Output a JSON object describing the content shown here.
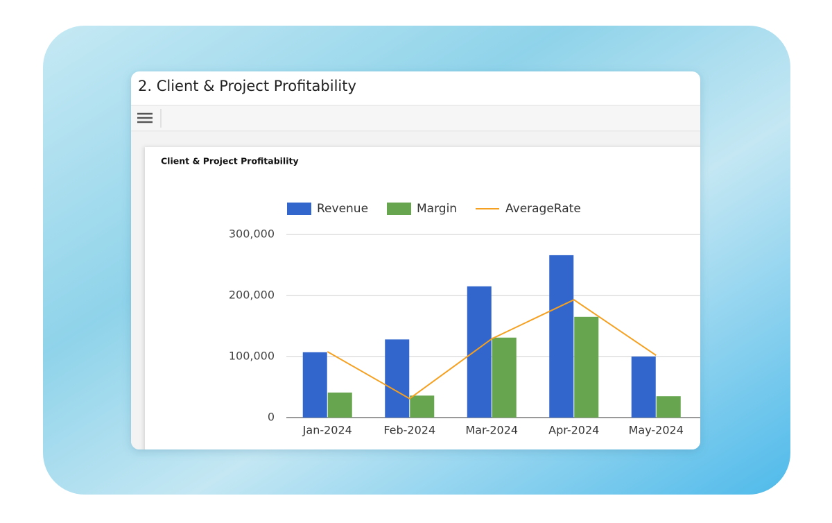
{
  "header": {
    "title": "2. Client & Project Profitability"
  },
  "chart_data": {
    "type": "bar-line",
    "title": "Client & Project Profitability",
    "categories": [
      "Jan-2024",
      "Feb-2024",
      "Mar-2024",
      "Apr-2024",
      "May-2024"
    ],
    "series": [
      {
        "name": "Revenue",
        "type": "bar",
        "color": "#3366cc",
        "values": [
          107000,
          128000,
          215000,
          266000,
          100000
        ]
      },
      {
        "name": "Margin",
        "type": "bar",
        "color": "#67a64f",
        "values": [
          41000,
          36000,
          131000,
          165000,
          35000
        ]
      },
      {
        "name": "AverageRate",
        "type": "line",
        "color": "#f5a020",
        "values": [
          108000,
          31000,
          129000,
          193000,
          102000
        ]
      }
    ],
    "ylim": [
      0,
      300000
    ],
    "yticks": [
      0,
      {
        "value": 100000,
        "label": "100,000"
      },
      {
        "value": 200000,
        "label": "200,000"
      },
      {
        "value": 300000,
        "label": "300,000"
      }
    ],
    "grid": true,
    "legend": "top"
  }
}
